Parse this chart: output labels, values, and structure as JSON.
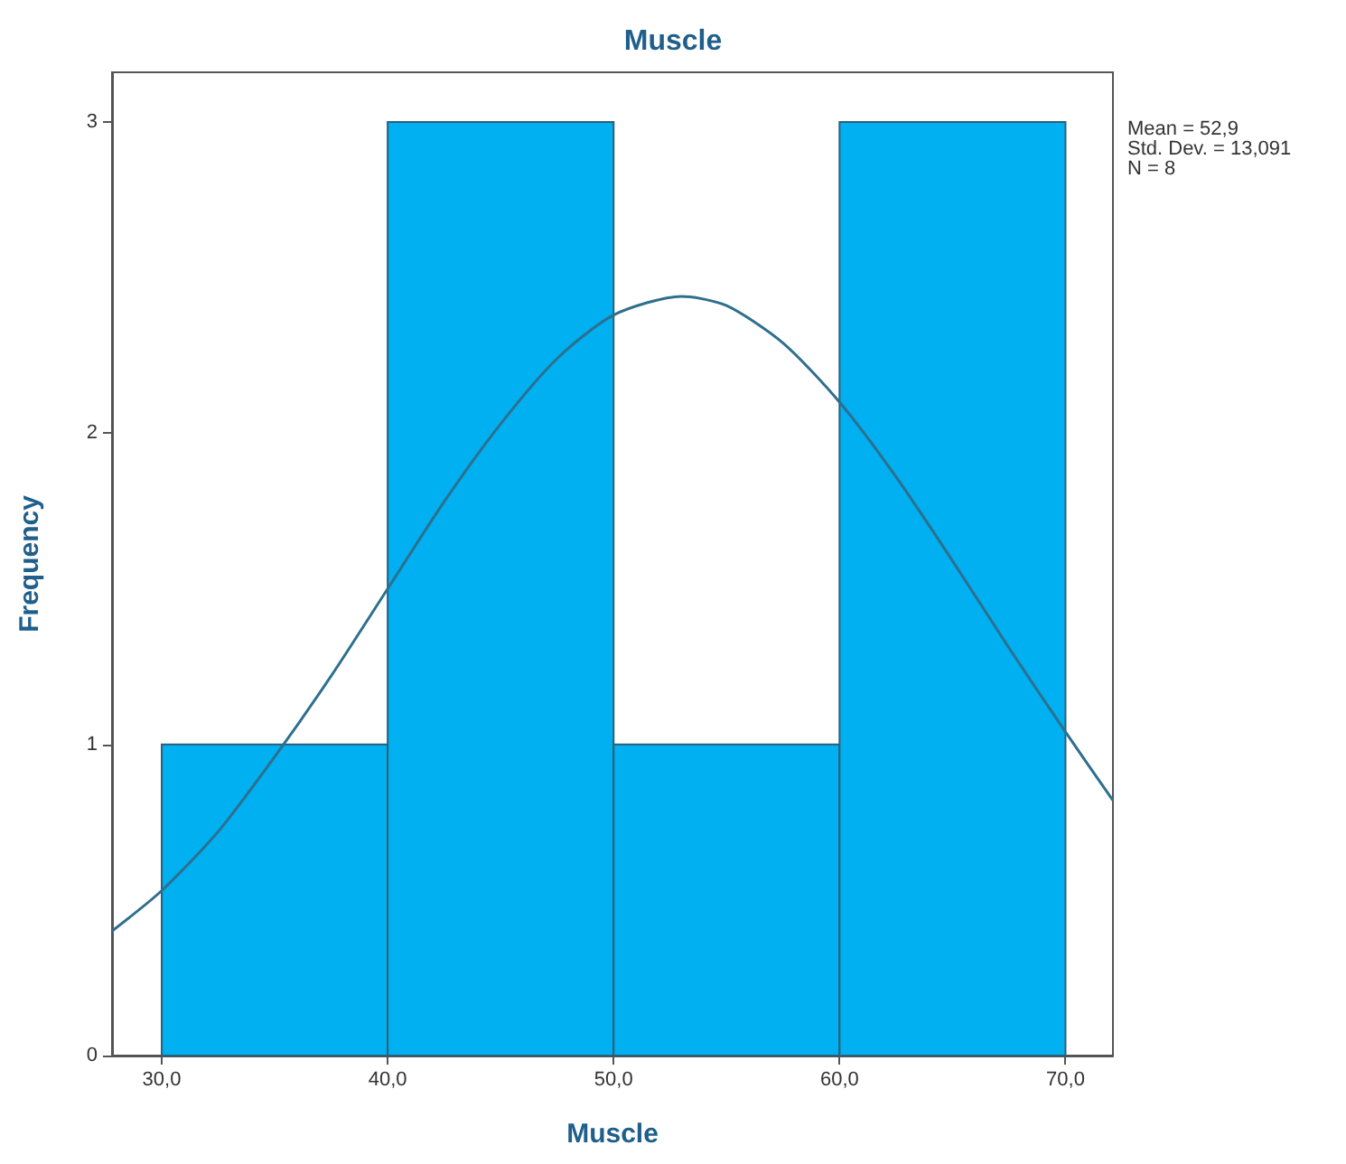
{
  "chart_data": {
    "type": "histogram",
    "title": "Muscle",
    "xlabel": "Muscle",
    "ylabel": "Frequency",
    "annotations": [
      "Mean = 52,9",
      "Std. Dev. = 13,091",
      "N = 8"
    ],
    "xlim": [
      27.8,
      72.1
    ],
    "xticks": [
      {
        "value": 30,
        "label": "30,0"
      },
      {
        "value": 40,
        "label": "40,0"
      },
      {
        "value": 50,
        "label": "50,0"
      },
      {
        "value": 60,
        "label": "60,0"
      },
      {
        "value": 70,
        "label": "70,0"
      }
    ],
    "ylim": [
      0,
      3.16
    ],
    "yticks": [
      0,
      1,
      2,
      3
    ],
    "grid": false,
    "marker": "none",
    "series": [
      {
        "color": "#00b0f0",
        "bins": [
          30,
          40,
          50,
          60,
          70
        ],
        "values": [
          1,
          3,
          1,
          3
        ]
      },
      {
        "type": "line",
        "color": "#2e6f8e",
        "x": [
          27.8,
          30,
          32.5,
          35,
          37.5,
          40,
          42.5,
          45,
          47.5,
          50,
          53,
          55,
          57.5,
          60,
          62.5,
          65,
          67.5,
          70,
          72.1
        ],
        "values": [
          0.4,
          0.53,
          0.72,
          0.96,
          1.22,
          1.5,
          1.78,
          2.03,
          2.24,
          2.38,
          2.44,
          2.41,
          2.29,
          2.1,
          1.86,
          1.59,
          1.31,
          1.04,
          0.82
        ]
      }
    ]
  }
}
